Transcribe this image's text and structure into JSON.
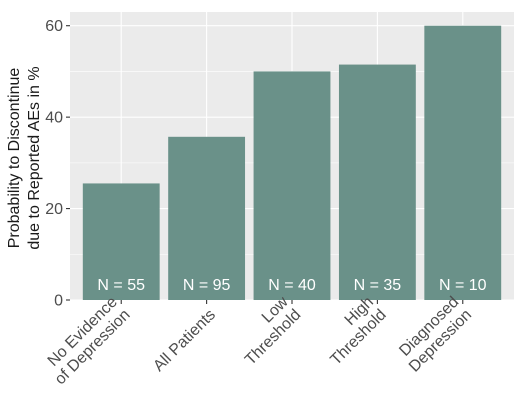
{
  "chart_data": {
    "type": "bar",
    "categories": [
      [
        "No Evidence",
        "of Depression"
      ],
      [
        "All Patients"
      ],
      [
        "Low",
        "Threshold"
      ],
      [
        "High",
        "Threshold"
      ],
      [
        "Diagnosed",
        "Depression"
      ]
    ],
    "values": [
      25.5,
      35.7,
      50,
      51.5,
      60
    ],
    "bar_labels": [
      "N = 55",
      "N = 95",
      "N = 40",
      "N = 35",
      "N = 10"
    ],
    "ylabel": [
      "Probability to Discontinue",
      "due to Reported AEs in %"
    ],
    "xlabel": "",
    "ylim": [
      0,
      63
    ],
    "yticks": [
      0,
      20,
      40,
      60
    ],
    "grid": true,
    "colors": {
      "bar": "#6a9189",
      "panel": "#ebebeb",
      "grid": "#ffffff"
    }
  }
}
